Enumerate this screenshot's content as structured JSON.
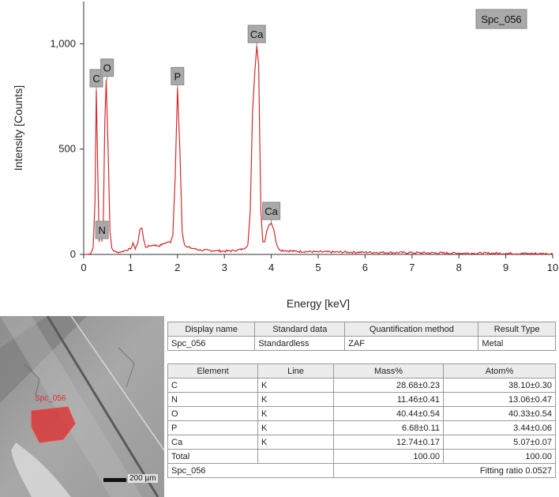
{
  "chart_data": {
    "type": "line",
    "title": "",
    "xlabel": "Energy [keV]",
    "ylabel": "Intensity [Counts]",
    "xlim": [
      0,
      10
    ],
    "ylim": [
      0,
      1200
    ],
    "x_ticks": [
      "0",
      "1",
      "2",
      "3",
      "4",
      "5",
      "6",
      "7",
      "8",
      "9",
      "10"
    ],
    "y_ticks": [
      "0",
      "500",
      "1,000"
    ],
    "grid": false,
    "legend": "Spc_056",
    "series_color": "#d42a2a",
    "series": [
      {
        "name": "Spc_056",
        "x": [
          0.0,
          0.08,
          0.15,
          0.2,
          0.24,
          0.27,
          0.3,
          0.33,
          0.36,
          0.39,
          0.42,
          0.45,
          0.48,
          0.52,
          0.56,
          0.6,
          0.65,
          0.7,
          0.8,
          0.9,
          1.0,
          1.05,
          1.1,
          1.15,
          1.2,
          1.24,
          1.28,
          1.32,
          1.4,
          1.5,
          1.6,
          1.7,
          1.8,
          1.85,
          1.9,
          1.95,
          2.0,
          2.05,
          2.1,
          2.15,
          2.2,
          2.3,
          2.5,
          2.8,
          3.0,
          3.2,
          3.4,
          3.5,
          3.55,
          3.6,
          3.65,
          3.69,
          3.73,
          3.78,
          3.82,
          3.86,
          3.9,
          3.95,
          4.0,
          4.05,
          4.1,
          4.15,
          4.2,
          4.3,
          4.5,
          5.0,
          6.0,
          7.0,
          8.0,
          9.0,
          10.0
        ],
        "y": [
          0,
          0,
          5,
          30,
          250,
          780,
          400,
          60,
          130,
          60,
          160,
          620,
          830,
          500,
          110,
          30,
          15,
          10,
          12,
          20,
          25,
          55,
          25,
          50,
          120,
          125,
          70,
          35,
          40,
          45,
          40,
          50,
          60,
          55,
          90,
          360,
          790,
          500,
          110,
          45,
          35,
          30,
          20,
          18,
          15,
          18,
          25,
          45,
          200,
          670,
          870,
          990,
          900,
          200,
          60,
          60,
          110,
          140,
          150,
          120,
          60,
          30,
          20,
          18,
          15,
          12,
          10,
          8,
          6,
          5,
          3
        ]
      }
    ],
    "annotations": [
      {
        "text": "C",
        "x": 0.27,
        "y": 780
      },
      {
        "text": "N",
        "x": 0.39,
        "y": 60
      },
      {
        "text": "O",
        "x": 0.5,
        "y": 830
      },
      {
        "text": "P",
        "x": 2.0,
        "y": 790
      },
      {
        "text": "Ca",
        "x": 3.69,
        "y": 990
      },
      {
        "text": "Ca",
        "x": 4.0,
        "y": 150
      }
    ]
  },
  "spectrum_label": "Spc_056",
  "sem_image": {
    "region_label": "Spc_056",
    "scale_label": "200 µm",
    "region_color": "#e02a2a"
  },
  "info_table": {
    "headers": [
      "Display name",
      "Standard data",
      "Quantification method",
      "Result Type"
    ],
    "row": [
      "Spc_056",
      "Standardless",
      "ZAF",
      "Metal"
    ]
  },
  "element_table": {
    "headers": [
      "Element",
      "Line",
      "Mass%",
      "Atom%"
    ],
    "rows": [
      [
        "C",
        "K",
        "28.68±0.23",
        "38.10±0.30"
      ],
      [
        "N",
        "K",
        "11.46±0.41",
        "13.06±0.47"
      ],
      [
        "O",
        "K",
        "40.44±0.54",
        "40.33±0.54"
      ],
      [
        "P",
        "K",
        "6.68±0.11",
        "3.44±0.06"
      ],
      [
        "Ca",
        "K",
        "12.74±0.17",
        "5.07±0.07"
      ]
    ],
    "total": [
      "Total",
      "",
      "100.00",
      "100.00"
    ],
    "footer_left": "Spc_056",
    "footer_right": "Fitting ratio 0.0527"
  }
}
